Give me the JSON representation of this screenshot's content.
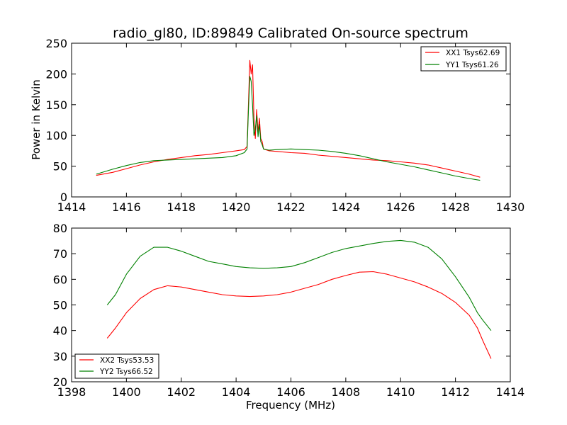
{
  "title": "radio_gl80, ID:89849 Calibrated On-source spectrum",
  "chart_data": [
    {
      "type": "line",
      "ylabel": "Power in Kelvin",
      "xlabel": "",
      "xlim": [
        1414,
        1430
      ],
      "ylim": [
        0,
        250
      ],
      "xticks": [
        1414,
        1416,
        1418,
        1420,
        1422,
        1424,
        1426,
        1428,
        1430
      ],
      "yticks": [
        0,
        50,
        100,
        150,
        200,
        250
      ],
      "legend_position": "top-right",
      "series": [
        {
          "name": "XX1 Tsys62.69",
          "color": "#ff0000",
          "points": [
            [
              1414.9,
              35
            ],
            [
              1415.5,
              40
            ],
            [
              1416,
              46
            ],
            [
              1416.5,
              52
            ],
            [
              1417,
              57
            ],
            [
              1417.5,
              61
            ],
            [
              1418,
              64
            ],
            [
              1418.5,
              67
            ],
            [
              1419,
              69
            ],
            [
              1419.5,
              72
            ],
            [
              1420,
              75
            ],
            [
              1420.3,
              77
            ],
            [
              1420.4,
              82
            ],
            [
              1420.45,
              150
            ],
            [
              1420.5,
              222
            ],
            [
              1420.55,
              200
            ],
            [
              1420.6,
              215
            ],
            [
              1420.65,
              130
            ],
            [
              1420.7,
              95
            ],
            [
              1420.75,
              142
            ],
            [
              1420.8,
              105
            ],
            [
              1420.85,
              128
            ],
            [
              1420.9,
              95
            ],
            [
              1420.95,
              90
            ],
            [
              1421,
              78
            ],
            [
              1421.2,
              75
            ],
            [
              1421.5,
              74
            ],
            [
              1422,
              72
            ],
            [
              1422.5,
              71
            ],
            [
              1423,
              68
            ],
            [
              1423.5,
              66
            ],
            [
              1424,
              64
            ],
            [
              1424.5,
              62
            ],
            [
              1425,
              60
            ],
            [
              1425.5,
              59
            ],
            [
              1426,
              57
            ],
            [
              1426.5,
              55
            ],
            [
              1427,
              52
            ],
            [
              1427.5,
              47
            ],
            [
              1428,
              42
            ],
            [
              1428.5,
              37
            ],
            [
              1428.9,
              32
            ]
          ]
        },
        {
          "name": "YY1 Tsys61.26",
          "color": "#008000",
          "points": [
            [
              1414.9,
              37
            ],
            [
              1415.5,
              45
            ],
            [
              1416,
              51
            ],
            [
              1416.5,
              56
            ],
            [
              1417,
              59
            ],
            [
              1417.5,
              60
            ],
            [
              1418,
              61
            ],
            [
              1418.5,
              62
            ],
            [
              1419,
              63
            ],
            [
              1419.5,
              64
            ],
            [
              1420,
              67
            ],
            [
              1420.3,
              72
            ],
            [
              1420.4,
              78
            ],
            [
              1420.45,
              140
            ],
            [
              1420.5,
              196
            ],
            [
              1420.55,
              188
            ],
            [
              1420.6,
              150
            ],
            [
              1420.65,
              100
            ],
            [
              1420.7,
              110
            ],
            [
              1420.75,
              132
            ],
            [
              1420.8,
              98
            ],
            [
              1420.85,
              118
            ],
            [
              1420.9,
              90
            ],
            [
              1420.95,
              85
            ],
            [
              1421,
              78
            ],
            [
              1421.2,
              76
            ],
            [
              1421.5,
              77
            ],
            [
              1422,
              78
            ],
            [
              1422.5,
              77
            ],
            [
              1423,
              76
            ],
            [
              1423.5,
              74
            ],
            [
              1424,
              71
            ],
            [
              1424.5,
              67
            ],
            [
              1425,
              62
            ],
            [
              1425.5,
              57
            ],
            [
              1426,
              53
            ],
            [
              1426.5,
              49
            ],
            [
              1427,
              44
            ],
            [
              1427.5,
              39
            ],
            [
              1428,
              34
            ],
            [
              1428.5,
              30
            ],
            [
              1428.9,
              27
            ]
          ]
        }
      ]
    },
    {
      "type": "line",
      "xlabel": "Frequency (MHz)",
      "ylabel": "",
      "xlim": [
        1398,
        1414
      ],
      "ylim": [
        20,
        80
      ],
      "xticks": [
        1398,
        1400,
        1402,
        1404,
        1406,
        1408,
        1410,
        1412,
        1414
      ],
      "yticks": [
        20,
        30,
        40,
        50,
        60,
        70,
        80
      ],
      "legend_position": "bottom-left",
      "series": [
        {
          "name": "XX2 Tsys53.53",
          "color": "#ff0000",
          "points": [
            [
              1399.3,
              37
            ],
            [
              1399.6,
              41
            ],
            [
              1400,
              47
            ],
            [
              1400.5,
              52.5
            ],
            [
              1401,
              56
            ],
            [
              1401.5,
              57.5
            ],
            [
              1402,
              57
            ],
            [
              1402.5,
              56
            ],
            [
              1403,
              55
            ],
            [
              1403.5,
              54
            ],
            [
              1404,
              53.5
            ],
            [
              1404.5,
              53.3
            ],
            [
              1405,
              53.5
            ],
            [
              1405.5,
              54
            ],
            [
              1406,
              55
            ],
            [
              1406.5,
              56.5
            ],
            [
              1407,
              58
            ],
            [
              1407.5,
              60
            ],
            [
              1408,
              61.5
            ],
            [
              1408.5,
              62.8
            ],
            [
              1409,
              63
            ],
            [
              1409.5,
              62
            ],
            [
              1410,
              60.5
            ],
            [
              1410.5,
              59
            ],
            [
              1411,
              57
            ],
            [
              1411.5,
              54.5
            ],
            [
              1412,
              51
            ],
            [
              1412.5,
              46
            ],
            [
              1412.8,
              41
            ],
            [
              1413,
              36
            ],
            [
              1413.3,
              29
            ]
          ]
        },
        {
          "name": "YY2 Tsys66.52",
          "color": "#008000",
          "points": [
            [
              1399.3,
              50
            ],
            [
              1399.6,
              54
            ],
            [
              1400,
              62
            ],
            [
              1400.5,
              69
            ],
            [
              1401,
              72.5
            ],
            [
              1401.5,
              72.5
            ],
            [
              1402,
              71
            ],
            [
              1402.5,
              69
            ],
            [
              1403,
              67
            ],
            [
              1403.5,
              66
            ],
            [
              1404,
              65
            ],
            [
              1404.5,
              64.5
            ],
            [
              1405,
              64.3
            ],
            [
              1405.5,
              64.5
            ],
            [
              1406,
              65
            ],
            [
              1406.5,
              66.5
            ],
            [
              1407,
              68.5
            ],
            [
              1407.5,
              70.5
            ],
            [
              1408,
              72
            ],
            [
              1408.5,
              73
            ],
            [
              1409,
              74
            ],
            [
              1409.5,
              74.8
            ],
            [
              1410,
              75.2
            ],
            [
              1410.5,
              74.5
            ],
            [
              1411,
              72.5
            ],
            [
              1411.5,
              68
            ],
            [
              1412,
              61
            ],
            [
              1412.5,
              53
            ],
            [
              1412.8,
              47
            ],
            [
              1413,
              44
            ],
            [
              1413.3,
              40
            ]
          ]
        }
      ]
    }
  ]
}
